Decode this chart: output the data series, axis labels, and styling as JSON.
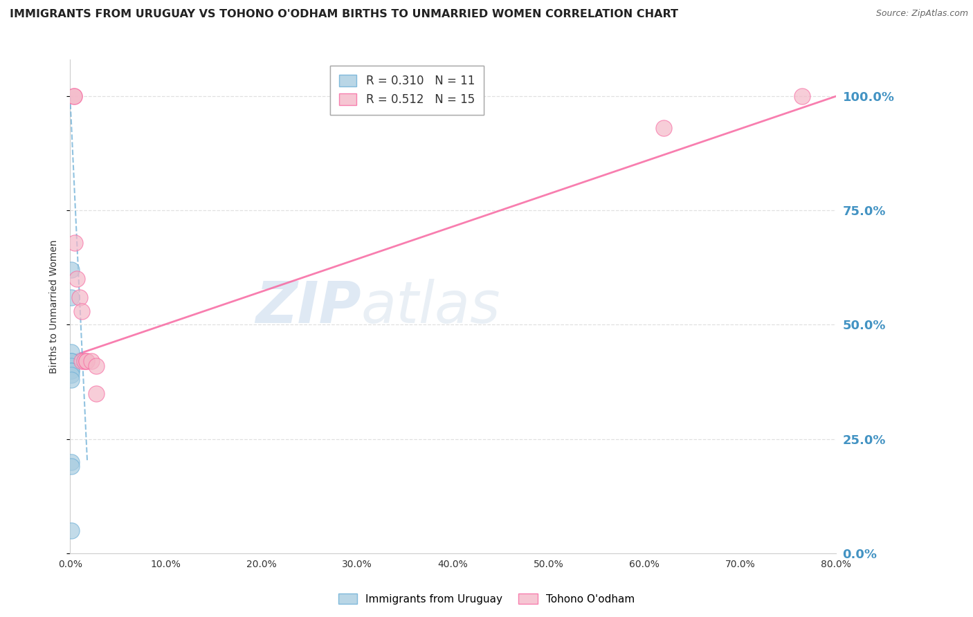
{
  "title": "IMMIGRANTS FROM URUGUAY VS TOHONO O'ODHAM BIRTHS TO UNMARRIED WOMEN CORRELATION CHART",
  "source": "Source: ZipAtlas.com",
  "ylabel": "Births to Unmarried Women",
  "xlabel_vals": [
    0,
    10,
    20,
    30,
    40,
    50,
    60,
    70,
    80
  ],
  "ylabel_vals": [
    0,
    25,
    50,
    75,
    100
  ],
  "xlim": [
    0,
    80
  ],
  "ylim": [
    0,
    108
  ],
  "legend_label1": "R = 0.310   N = 11",
  "legend_label2": "R = 0.512   N = 15",
  "legend_bottom_label1": "Immigrants from Uruguay",
  "legend_bottom_label2": "Tohono O'odham",
  "blue_color": "#a8cce0",
  "blue_edge_color": "#6baed6",
  "pink_color": "#f4b8c8",
  "pink_edge_color": "#f768a1",
  "blue_line_color": "#6baed6",
  "pink_line_color": "#f768a1",
  "watermark_zip": "ZIP",
  "watermark_atlas": "atlas",
  "blue_points_x": [
    0.15,
    0.15,
    0.15,
    0.15,
    0.15,
    0.15,
    0.15,
    0.15,
    0.15,
    0.15,
    0.15
  ],
  "blue_points_y": [
    62,
    56,
    44,
    42,
    42,
    41,
    40,
    40,
    39,
    38,
    20
  ],
  "pink_points_x": [
    0.5,
    0.7,
    1.0,
    1.2,
    1.2,
    1.5,
    1.7,
    1.7,
    2.2,
    2.7,
    2.7,
    0.4,
    0.4,
    62.0,
    76.5
  ],
  "pink_points_y": [
    68,
    60,
    56,
    53,
    42,
    42,
    42,
    42,
    42,
    41,
    35,
    100,
    100,
    93,
    100
  ],
  "blue_trend_x": [
    0.0,
    1.8
  ],
  "blue_trend_y": [
    100,
    20
  ],
  "pink_trend_x": [
    0.0,
    80.0
  ],
  "pink_trend_y": [
    43,
    100
  ],
  "grid_color": "#e0e0e0",
  "bg_color": "#ffffff",
  "title_fontsize": 11.5,
  "tick_fontsize": 10,
  "legend_fontsize": 12,
  "right_axis_color": "#4393c3",
  "blue_point_size": 280,
  "pink_point_size": 280,
  "blue_lone_x": [
    0.15
  ],
  "blue_lone_y": [
    19
  ],
  "blue_low_x": [
    0.15
  ],
  "blue_low_y": [
    5
  ]
}
